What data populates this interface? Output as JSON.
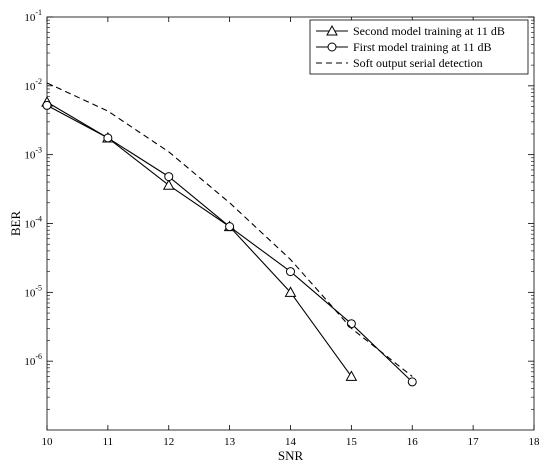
{
  "chart_data": {
    "type": "line",
    "xlabel": "SNR",
    "ylabel": "BER",
    "xlim": [
      10,
      18
    ],
    "ylim": [
      1e-07,
      0.1
    ],
    "yscale": "log",
    "grid": false,
    "legend_position": "top-right",
    "x_ticks": [
      "10",
      "11",
      "12",
      "13",
      "14",
      "15",
      "16",
      "17",
      "18"
    ],
    "y_ticks": [
      {
        "base": "10",
        "exp": "-1"
      },
      {
        "base": "10",
        "exp": "-2"
      },
      {
        "base": "10",
        "exp": "-3"
      },
      {
        "base": "10",
        "exp": "-4"
      },
      {
        "base": "10",
        "exp": "-5"
      },
      {
        "base": "10",
        "exp": "-6"
      }
    ],
    "series": [
      {
        "name": "Second model training at 11 dB",
        "marker": "triangle",
        "line_style": "solid",
        "x": [
          10,
          11,
          12,
          13,
          14,
          15
        ],
        "y": [
          0.0058,
          0.00175,
          0.00036,
          9e-05,
          1e-05,
          6e-07
        ]
      },
      {
        "name": "First model training at 11 dB",
        "marker": "circle",
        "line_style": "solid",
        "x": [
          10,
          11,
          12,
          13,
          14,
          15,
          16
        ],
        "y": [
          0.0052,
          0.00175,
          0.00048,
          9e-05,
          2e-05,
          3.5e-06,
          5e-07
        ]
      },
      {
        "name": "Soft output serial detection",
        "marker": "none",
        "line_style": "dashed",
        "x": [
          10,
          11,
          12,
          13,
          14,
          15,
          16
        ],
        "y": [
          0.011,
          0.0043,
          0.0011,
          0.0002,
          3e-05,
          3e-06,
          6e-07
        ]
      }
    ]
  }
}
